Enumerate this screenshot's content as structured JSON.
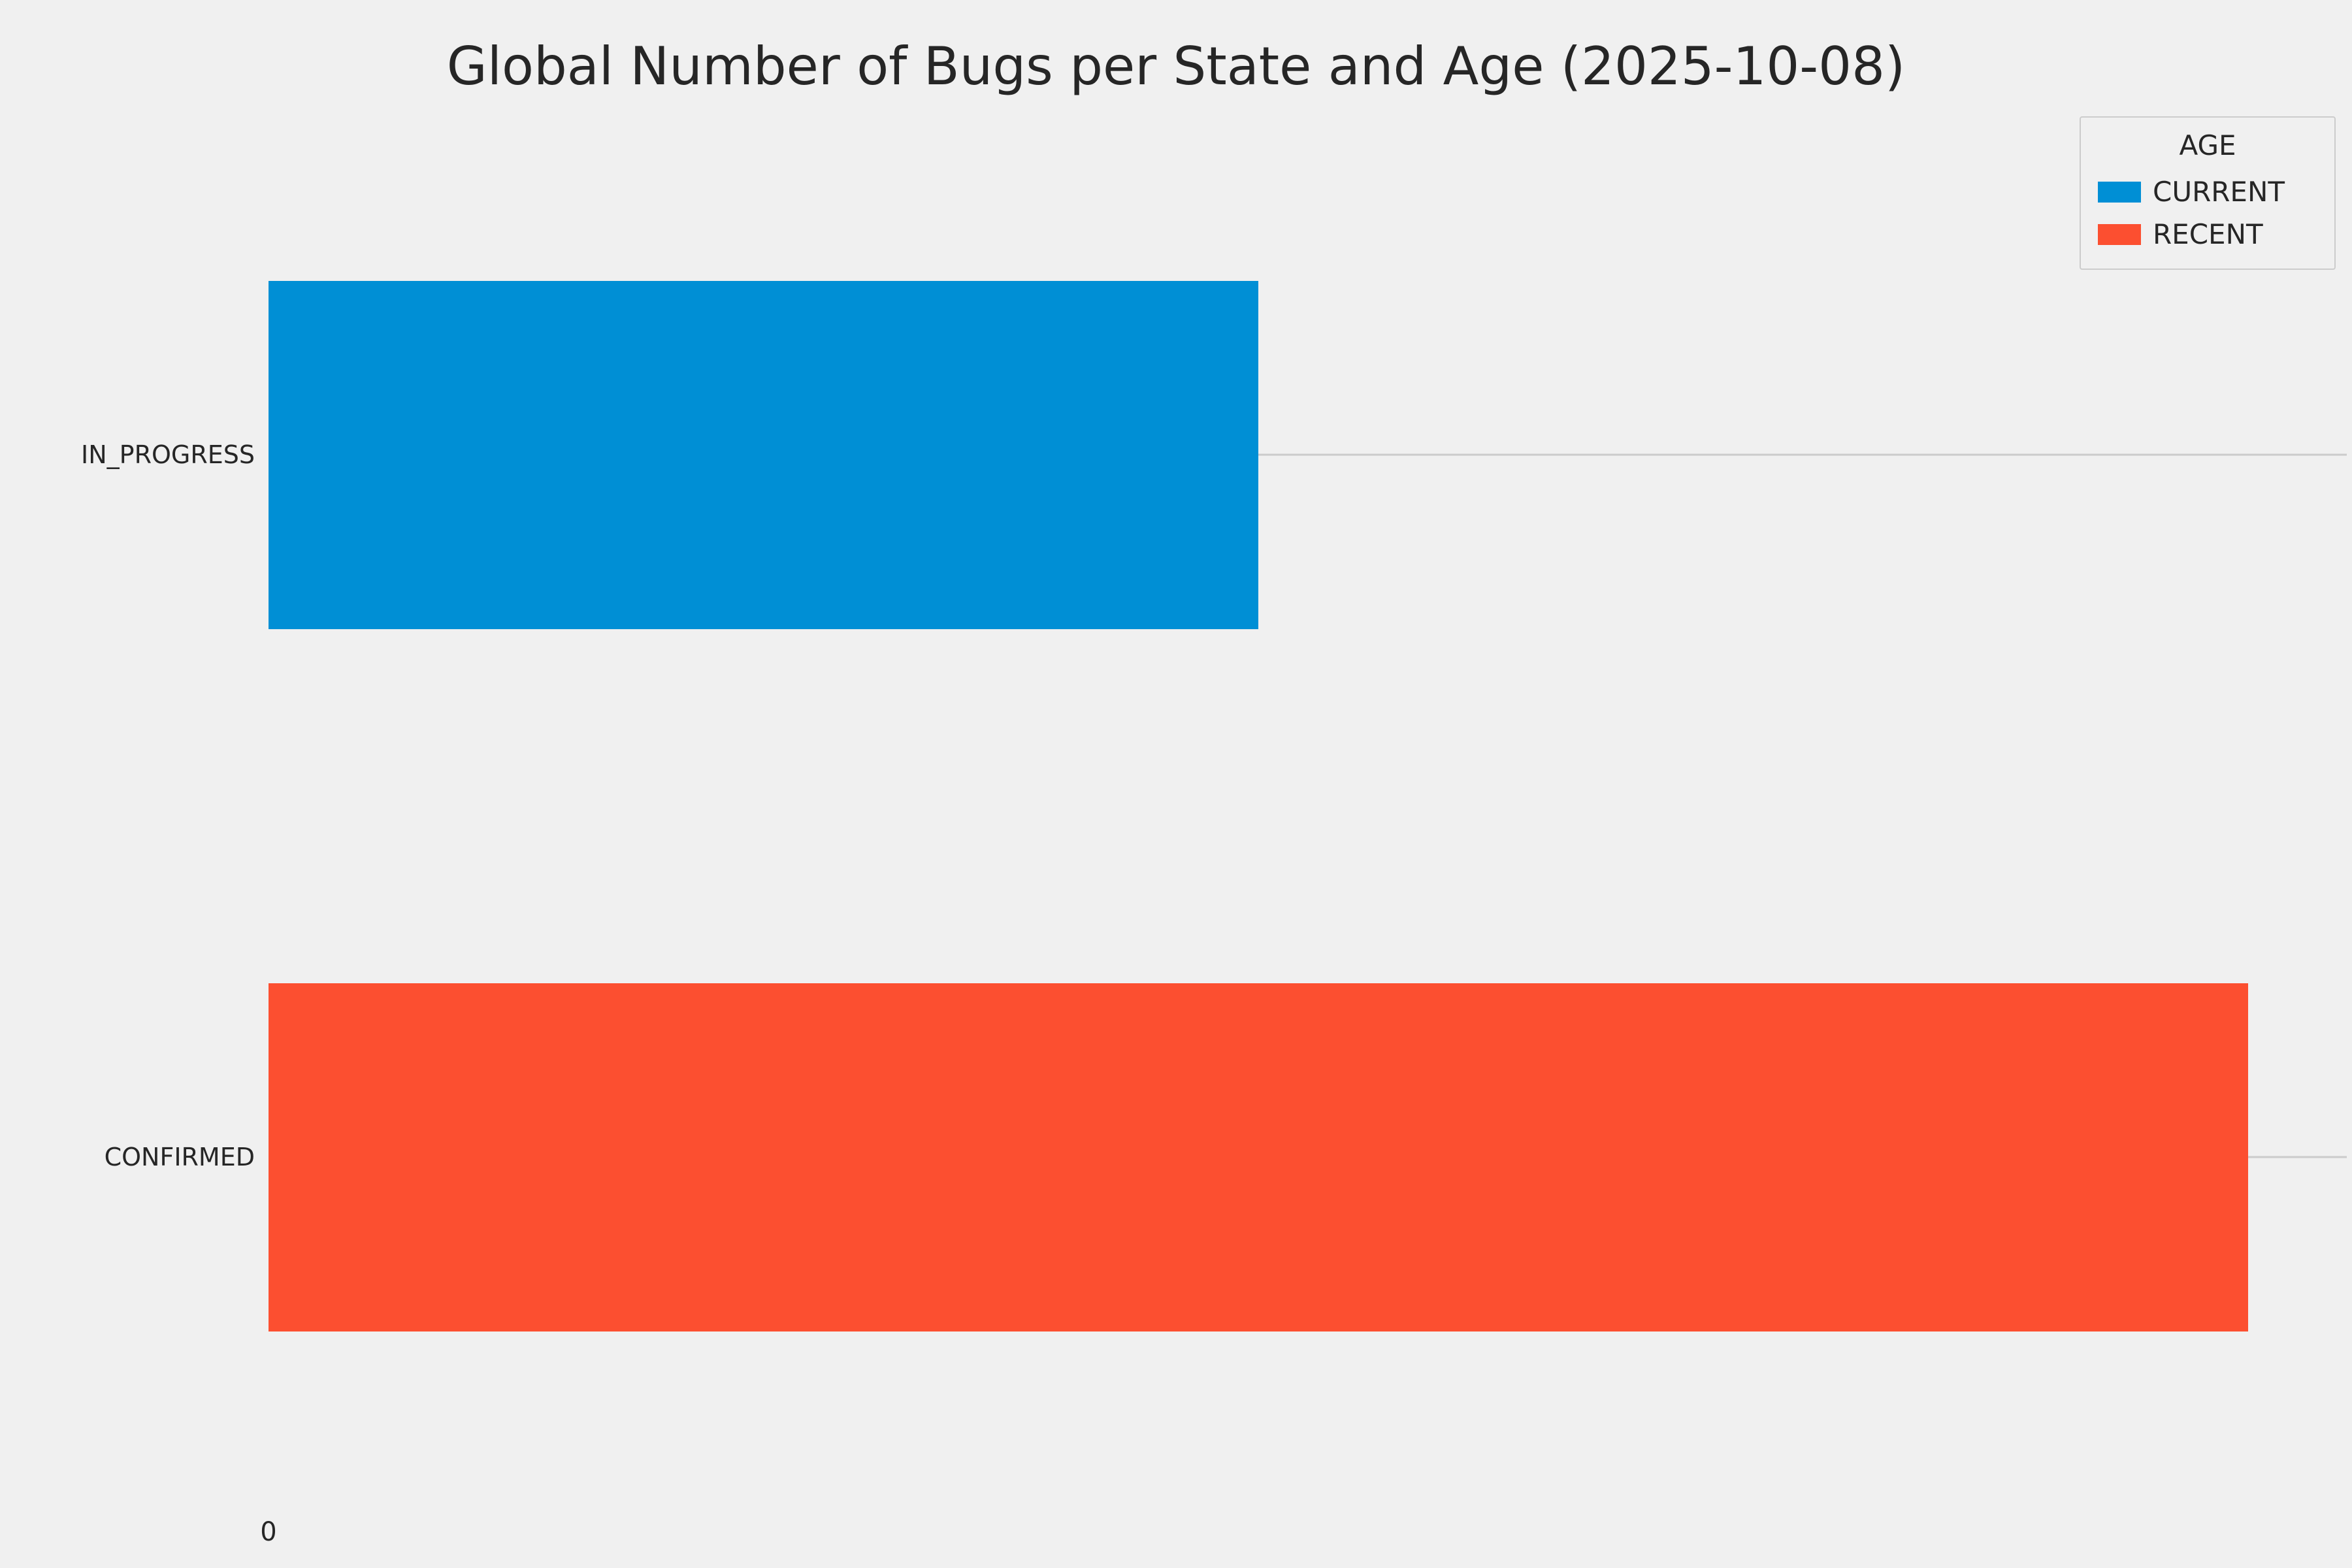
{
  "title": "Global Number of Bugs per State and Age (2025-10-08)",
  "colors": {
    "background": "#f0f0f0",
    "current": "#008fd5",
    "recent": "#fc4f30",
    "grid": "#cbcbcb",
    "text": "#262626"
  },
  "legend": {
    "title": "AGE",
    "entries": [
      {
        "label": "CURRENT",
        "color": "#008fd5"
      },
      {
        "label": "RECENT",
        "color": "#fc4f30"
      }
    ]
  },
  "x_axis": {
    "tick_labels": [
      "0"
    ]
  },
  "chart_data": {
    "type": "bar",
    "orientation": "horizontal",
    "title": "Global Number of Bugs per State and Age (2025-10-08)",
    "categories": [
      "IN_PROGRESS",
      "CONFIRMED"
    ],
    "bars": [
      {
        "category": "IN_PROGRESS",
        "age": "CURRENT",
        "value": 1,
        "color": "#008fd5"
      },
      {
        "category": "CONFIRMED",
        "age": "RECENT",
        "value": 2,
        "color": "#fc4f30"
      }
    ],
    "series": [
      {
        "name": "CURRENT",
        "values": [
          1,
          0
        ]
      },
      {
        "name": "RECENT",
        "values": [
          0,
          2
        ]
      }
    ],
    "xlabel": "",
    "ylabel": "",
    "xlim": [
      0,
      2.1
    ],
    "grid": "y-category gridlines only",
    "legend_position": "upper right",
    "legend_title": "AGE"
  }
}
